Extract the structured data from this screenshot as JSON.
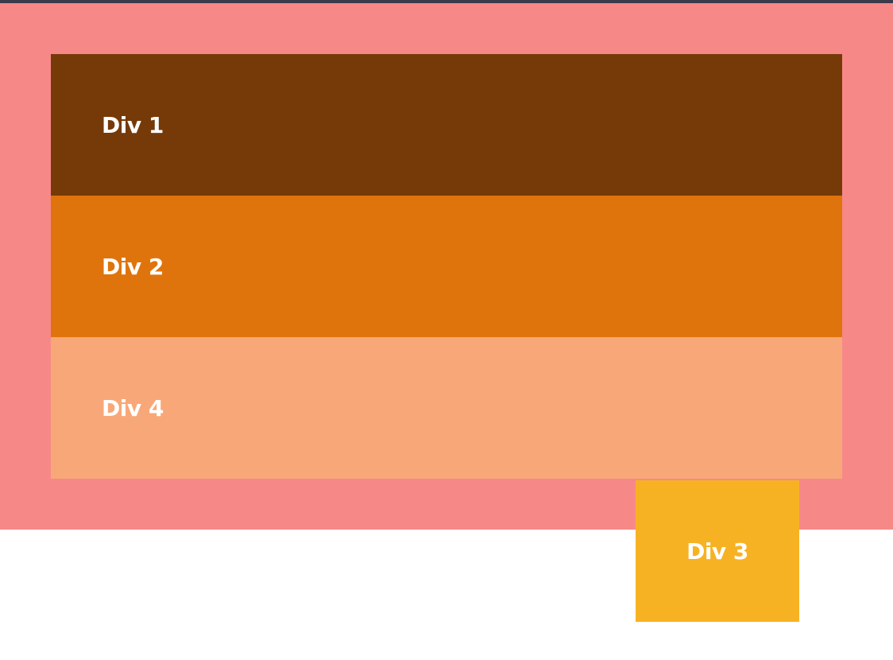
{
  "colors": {
    "top_bar": "#3b3a4a",
    "container": "#f78888",
    "div1": "#763a08",
    "div2": "#e0740c",
    "div3": "#f7b224",
    "div4": "#f8a878",
    "label_text": "#ffffff",
    "page_background": "#ffffff"
  },
  "boxes": {
    "div1": {
      "label": "Div 1"
    },
    "div2": {
      "label": "Div 2"
    },
    "div3": {
      "label": "Div 3"
    },
    "div4": {
      "label": "Div 4"
    }
  }
}
